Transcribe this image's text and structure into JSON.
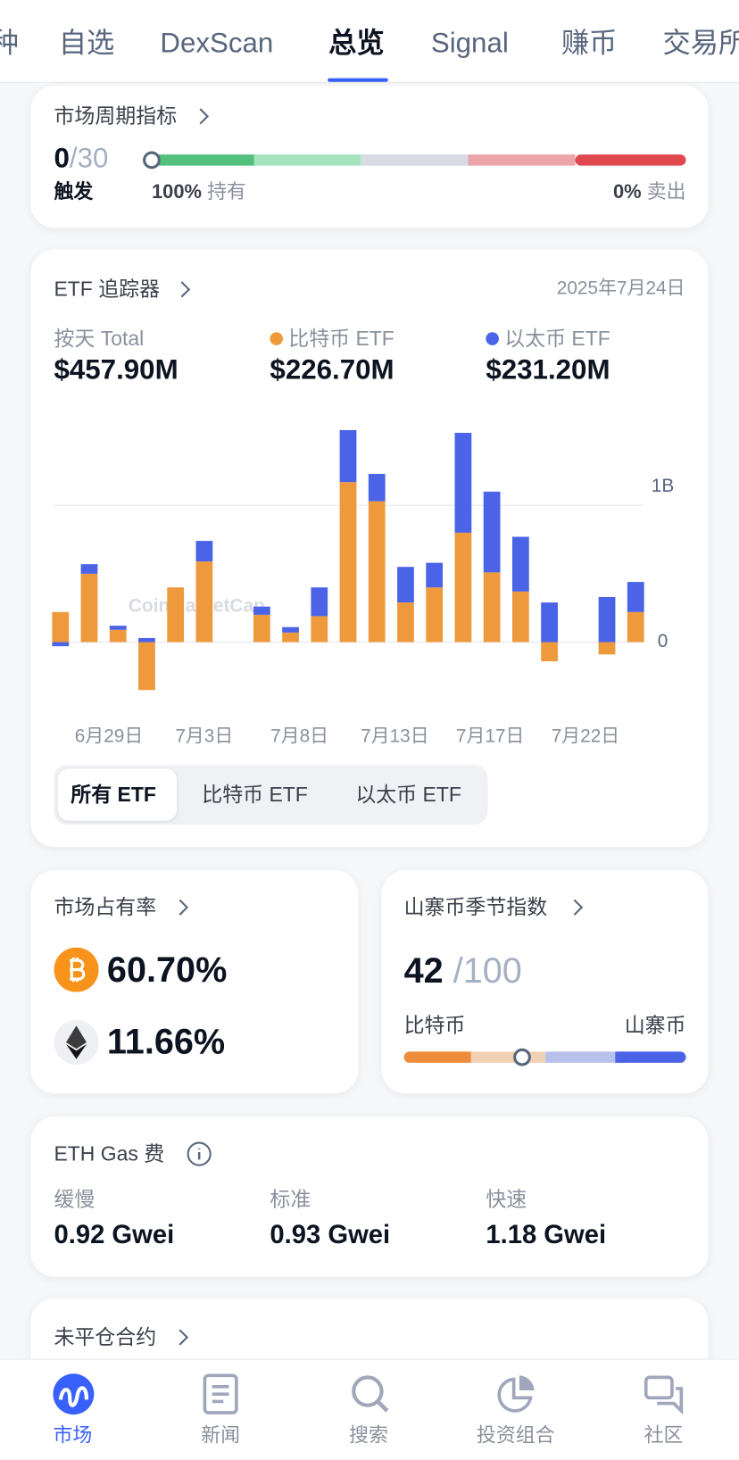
{
  "tabs": [
    "种",
    "自选",
    "DexScan",
    "总览",
    "Signal",
    "赚币",
    "交易所"
  ],
  "cycle": {
    "title": "市场周期指标",
    "value": "0",
    "max": "/30",
    "status": "触发",
    "left_pct": "100%",
    "left_label": "持有",
    "right_pct": "0%",
    "right_label": "卖出"
  },
  "etf": {
    "title": "ETF 追踪器",
    "date": "2025年7月24日",
    "total_label": "按天 Total",
    "totals": [
      "$457.90M",
      "$226.70M",
      "$231.20M"
    ],
    "filters": [
      "所有 ETF",
      "比特币 ETF",
      "以太币 ETF"
    ]
  },
  "chart_data": {
    "type": "bar",
    "stacked": true,
    "watermark": "CoinMarketCap",
    "categories": [
      null,
      null,
      null,
      null,
      null,
      null,
      null,
      null,
      null,
      null,
      null,
      null,
      null,
      null,
      null,
      null,
      null,
      null,
      null,
      null,
      null
    ],
    "x_labels": [
      "6月29日",
      "7月3日",
      "7月8日",
      "7月13日",
      "7月17日",
      "7月22日"
    ],
    "series": [
      {
        "name": "比特币 ETF",
        "color": "#ee9a3c",
        "values": [
          0.22,
          0.5,
          0.09,
          -0.35,
          0.4,
          0.59,
          null,
          0.2,
          0.07,
          0.19,
          1.17,
          1.03,
          0.29,
          0.4,
          0.8,
          0.51,
          0.37,
          -0.14,
          null,
          -0.09,
          0.22
        ]
      },
      {
        "name": "以太币 ETF",
        "color": "#4a63e7",
        "values": [
          -0.03,
          0.07,
          0.03,
          0.03,
          0,
          0.15,
          null,
          0.06,
          0.04,
          0.21,
          0.38,
          0.2,
          0.26,
          0.18,
          0.73,
          0.59,
          0.4,
          0.29,
          null,
          0.33,
          0.22
        ]
      }
    ],
    "ylim": [
      -0.45,
      1.6
    ],
    "yticks": [
      0,
      {
        "value": 1,
        "label": "1B"
      }
    ],
    "grid": true
  },
  "share": {
    "title": "市场占有率",
    "btc": "60.70%",
    "eth": "11.66%"
  },
  "altseason": {
    "title": "山寨币季节指数",
    "value": "42",
    "max": "/100",
    "left": "比特币",
    "right": "山寨币"
  },
  "gas": {
    "title": "ETH Gas 费",
    "items": [
      {
        "label": "缓慢",
        "value": "0.92 Gwei"
      },
      {
        "label": "标准",
        "value": "0.93 Gwei"
      },
      {
        "label": "快速",
        "value": "1.18 Gwei"
      }
    ]
  },
  "open_interest": {
    "title": "未平仓合约"
  },
  "nav": [
    "市场",
    "新闻",
    "搜索",
    "投资组合",
    "社区"
  ]
}
